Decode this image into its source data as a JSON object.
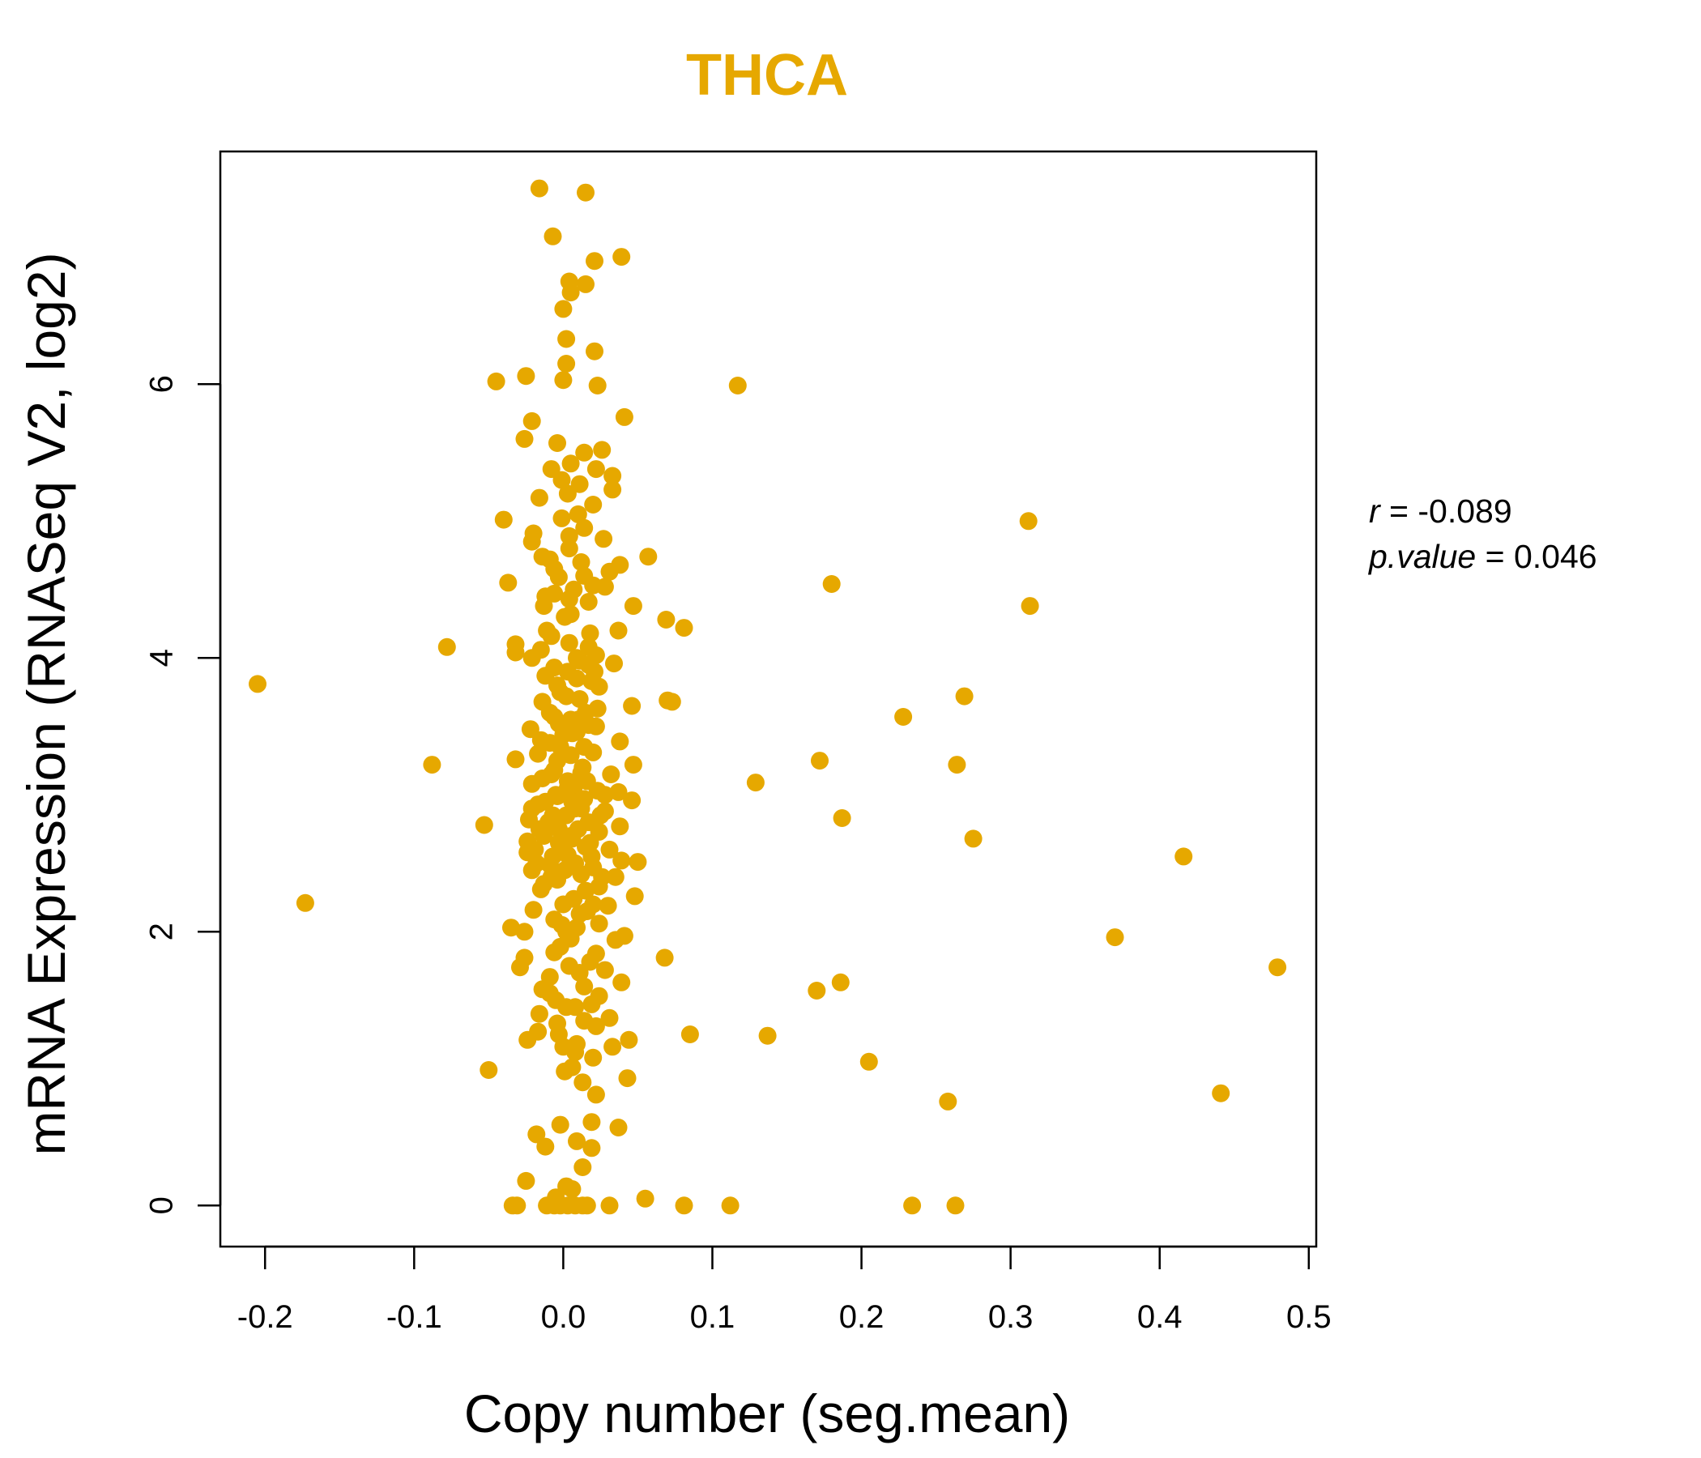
{
  "colors": {
    "points": "#E6A800",
    "axis": "#000000"
  },
  "chart_data": {
    "type": "scatter",
    "title": "THCA",
    "xlabel": "Copy number (seg.mean)",
    "ylabel": "mRNA Expression (RNASeq V2, log2)",
    "xlim": [
      -0.23,
      0.505
    ],
    "ylim": [
      -0.3,
      7.7
    ],
    "x_ticks": [
      -0.2,
      -0.1,
      0.0,
      0.1,
      0.2,
      0.3,
      0.4,
      0.5
    ],
    "x_tick_labels": [
      "-0.2",
      "-0.1",
      "0.0",
      "0.1",
      "0.2",
      "0.3",
      "0.4",
      "0.5"
    ],
    "y_ticks": [
      0,
      2,
      4,
      6
    ],
    "y_tick_labels": [
      "0",
      "2",
      "4",
      "6"
    ],
    "grid": false,
    "legend": "none",
    "stats": {
      "r_label": "r",
      "r_value": "-0.089",
      "p_label": "p.value",
      "p_value": "0.046"
    },
    "points": [
      [
        -0.016,
        7.43
      ],
      [
        0.015,
        7.4
      ],
      [
        -0.007,
        7.08
      ],
      [
        0.021,
        6.9
      ],
      [
        0.039,
        6.93
      ],
      [
        0.004,
        6.75
      ],
      [
        0.015,
        6.73
      ],
      [
        0.005,
        6.67
      ],
      [
        0.0,
        6.55
      ],
      [
        0.002,
        6.33
      ],
      [
        0.021,
        6.24
      ],
      [
        0.002,
        6.15
      ],
      [
        0.0,
        6.03
      ],
      [
        -0.045,
        6.02
      ],
      [
        -0.025,
        6.06
      ],
      [
        0.117,
        5.99
      ],
      [
        0.023,
        5.99
      ],
      [
        0.041,
        5.76
      ],
      [
        -0.021,
        5.73
      ],
      [
        -0.026,
        5.6
      ],
      [
        -0.004,
        5.57
      ],
      [
        0.014,
        5.5
      ],
      [
        0.026,
        5.52
      ],
      [
        0.005,
        5.42
      ],
      [
        -0.008,
        5.38
      ],
      [
        0.022,
        5.38
      ],
      [
        0.033,
        5.33
      ],
      [
        -0.001,
        5.3
      ],
      [
        0.011,
        5.27
      ],
      [
        0.033,
        5.23
      ],
      [
        0.003,
        5.2
      ],
      [
        -0.016,
        5.17
      ],
      [
        0.02,
        5.12
      ],
      [
        0.01,
        5.05
      ],
      [
        -0.001,
        5.02
      ],
      [
        -0.04,
        5.01
      ],
      [
        0.312,
        5.0
      ],
      [
        0.014,
        4.95
      ],
      [
        -0.02,
        4.91
      ],
      [
        0.004,
        4.89
      ],
      [
        0.027,
        4.87
      ],
      [
        -0.021,
        4.85
      ],
      [
        -0.014,
        4.74
      ],
      [
        0.057,
        4.74
      ],
      [
        -0.009,
        4.72
      ],
      [
        0.038,
        4.68
      ],
      [
        0.031,
        4.63
      ],
      [
        0.014,
        4.6
      ],
      [
        -0.003,
        4.59
      ],
      [
        -0.037,
        4.55
      ],
      [
        0.18,
        4.54
      ],
      [
        0.02,
        4.53
      ],
      [
        0.028,
        4.52
      ],
      [
        -0.006,
        4.47
      ],
      [
        0.004,
        4.43
      ],
      [
        0.017,
        4.41
      ],
      [
        -0.013,
        4.38
      ],
      [
        0.047,
        4.38
      ],
      [
        0.313,
        4.38
      ],
      [
        0.005,
        4.32
      ],
      [
        0.069,
        4.28
      ],
      [
        0.081,
        4.22
      ],
      [
        0.037,
        4.2
      ],
      [
        0.018,
        4.18
      ],
      [
        -0.008,
        4.16
      ],
      [
        0.004,
        4.11
      ],
      [
        0.017,
        4.08
      ],
      [
        -0.032,
        4.1
      ],
      [
        -0.078,
        4.08
      ],
      [
        -0.015,
        4.06
      ],
      [
        -0.032,
        4.04
      ],
      [
        0.022,
        4.02
      ],
      [
        -0.021,
        4.0
      ],
      [
        0.011,
        3.98
      ],
      [
        0.034,
        3.96
      ],
      [
        -0.006,
        3.93
      ],
      [
        0.021,
        3.9
      ],
      [
        -0.012,
        3.87
      ],
      [
        0.009,
        3.85
      ],
      [
        0.019,
        3.83
      ],
      [
        -0.205,
        3.81
      ],
      [
        0.024,
        3.79
      ],
      [
        -0.002,
        3.75
      ],
      [
        0.002,
        3.72
      ],
      [
        0.269,
        3.72
      ],
      [
        0.07,
        3.69
      ],
      [
        0.073,
        3.68
      ],
      [
        -0.014,
        3.68
      ],
      [
        0.046,
        3.65
      ],
      [
        0.023,
        3.63
      ],
      [
        0.015,
        3.6
      ],
      [
        -0.006,
        3.57
      ],
      [
        0.228,
        3.57
      ],
      [
        0.005,
        3.55
      ],
      [
        -0.003,
        3.52
      ],
      [
        0.017,
        3.51
      ],
      [
        -0.022,
        3.48
      ],
      [
        0.009,
        3.46
      ],
      [
        0.0,
        3.44
      ],
      [
        0.038,
        3.39
      ],
      [
        -0.009,
        3.38
      ],
      [
        0.014,
        3.35
      ],
      [
        0.02,
        3.31
      ],
      [
        -0.017,
        3.3
      ],
      [
        0.005,
        3.29
      ],
      [
        -0.032,
        3.26
      ],
      [
        0.172,
        3.25
      ],
      [
        0.047,
        3.22
      ],
      [
        -0.088,
        3.22
      ],
      [
        0.264,
        3.22
      ],
      [
        -0.006,
        3.18
      ],
      [
        0.012,
        3.16
      ],
      [
        0.032,
        3.15
      ],
      [
        -0.014,
        3.12
      ],
      [
        0.016,
        3.1
      ],
      [
        0.129,
        3.09
      ],
      [
        -0.021,
        3.08
      ],
      [
        0.003,
        3.05
      ],
      [
        0.023,
        3.03
      ],
      [
        0.037,
        3.02
      ],
      [
        -0.004,
        2.99
      ],
      [
        0.014,
        2.97
      ],
      [
        0.046,
        2.96
      ],
      [
        -0.017,
        2.93
      ],
      [
        0.008,
        2.9
      ],
      [
        0.028,
        2.88
      ],
      [
        -0.007,
        2.85
      ],
      [
        0.187,
        2.83
      ],
      [
        -0.023,
        2.82
      ],
      [
        0.017,
        2.8
      ],
      [
        -0.053,
        2.78
      ],
      [
        0.038,
        2.77
      ],
      [
        -0.003,
        2.75
      ],
      [
        0.024,
        2.73
      ],
      [
        0.275,
        2.68
      ],
      [
        -0.013,
        2.7
      ],
      [
        0.006,
        2.68
      ],
      [
        -0.024,
        2.66
      ],
      [
        0.015,
        2.62
      ],
      [
        0.031,
        2.6
      ],
      [
        -0.024,
        2.58
      ],
      [
        0.003,
        2.56
      ],
      [
        0.416,
        2.55
      ],
      [
        0.039,
        2.52
      ],
      [
        0.05,
        2.51
      ],
      [
        -0.009,
        2.49
      ],
      [
        0.02,
        2.47
      ],
      [
        -0.021,
        2.45
      ],
      [
        0.012,
        2.42
      ],
      [
        0.035,
        2.4
      ],
      [
        -0.004,
        2.38
      ],
      [
        0.024,
        2.33
      ],
      [
        -0.015,
        2.31
      ],
      [
        0.048,
        2.26
      ],
      [
        0.007,
        2.24
      ],
      [
        -0.173,
        2.21
      ],
      [
        0.03,
        2.19
      ],
      [
        -0.02,
        2.16
      ],
      [
        0.011,
        2.13
      ],
      [
        -0.006,
        2.09
      ],
      [
        0.024,
        2.06
      ],
      [
        0.009,
        2.03
      ],
      [
        -0.035,
        2.03
      ],
      [
        0.002,
        2.0
      ],
      [
        -0.026,
        2.0
      ],
      [
        0.041,
        1.97
      ],
      [
        0.035,
        1.94
      ],
      [
        0.37,
        1.96
      ],
      [
        -0.002,
        1.89
      ],
      [
        0.022,
        1.84
      ],
      [
        0.068,
        1.81
      ],
      [
        -0.026,
        1.81
      ],
      [
        0.018,
        1.78
      ],
      [
        0.004,
        1.75
      ],
      [
        -0.029,
        1.74
      ],
      [
        0.479,
        1.74
      ],
      [
        0.028,
        1.72
      ],
      [
        -0.009,
        1.67
      ],
      [
        0.039,
        1.63
      ],
      [
        0.186,
        1.63
      ],
      [
        0.014,
        1.6
      ],
      [
        -0.014,
        1.58
      ],
      [
        0.17,
        1.57
      ],
      [
        0.024,
        1.53
      ],
      [
        -0.005,
        1.5
      ],
      [
        0.019,
        1.47
      ],
      [
        0.008,
        1.45
      ],
      [
        -0.016,
        1.4
      ],
      [
        0.031,
        1.37
      ],
      [
        -0.004,
        1.33
      ],
      [
        0.022,
        1.31
      ],
      [
        0.085,
        1.25
      ],
      [
        -0.017,
        1.27
      ],
      [
        0.137,
        1.24
      ],
      [
        0.044,
        1.21
      ],
      [
        -0.024,
        1.21
      ],
      [
        0.009,
        1.18
      ],
      [
        0.0,
        1.16
      ],
      [
        0.033,
        1.16
      ],
      [
        0.02,
        1.08
      ],
      [
        0.205,
        1.05
      ],
      [
        0.006,
        1.01
      ],
      [
        -0.05,
        0.99
      ],
      [
        0.001,
        0.98
      ],
      [
        0.013,
        0.9
      ],
      [
        0.043,
        0.93
      ],
      [
        0.022,
        0.81
      ],
      [
        0.441,
        0.82
      ],
      [
        0.258,
        0.76
      ],
      [
        0.019,
        0.61
      ],
      [
        -0.002,
        0.59
      ],
      [
        0.037,
        0.57
      ],
      [
        -0.018,
        0.52
      ],
      [
        0.009,
        0.47
      ],
      [
        -0.012,
        0.43
      ],
      [
        0.019,
        0.42
      ],
      [
        0.013,
        0.28
      ],
      [
        -0.025,
        0.18
      ],
      [
        0.002,
        0.14
      ],
      [
        0.006,
        0.12
      ],
      [
        -0.005,
        0.06
      ],
      [
        0.055,
        0.05
      ],
      [
        -0.034,
        0.0
      ],
      [
        -0.031,
        0.0
      ],
      [
        -0.011,
        0.0
      ],
      [
        -0.006,
        0.0
      ],
      [
        -0.002,
        0.0
      ],
      [
        0.003,
        0.0
      ],
      [
        0.008,
        0.0
      ],
      [
        0.013,
        0.0
      ],
      [
        0.016,
        0.0
      ],
      [
        0.031,
        0.0
      ],
      [
        0.081,
        0.0
      ],
      [
        0.112,
        0.0
      ],
      [
        0.234,
        0.0
      ],
      [
        0.263,
        0.0
      ],
      [
        0.0,
        2.6
      ],
      [
        0.005,
        2.7
      ],
      [
        -0.01,
        2.8
      ],
      [
        0.012,
        2.9
      ],
      [
        -0.005,
        3.0
      ],
      [
        0.003,
        3.1
      ],
      [
        0.008,
        2.5
      ],
      [
        -0.008,
        2.4
      ],
      [
        0.015,
        2.3
      ],
      [
        0.0,
        2.2
      ],
      [
        -0.012,
        2.95
      ],
      [
        0.01,
        2.75
      ],
      [
        -0.003,
        2.65
      ],
      [
        0.007,
        3.05
      ],
      [
        0.002,
        2.85
      ],
      [
        -0.007,
        2.55
      ],
      [
        0.018,
        2.65
      ],
      [
        -0.016,
        2.75
      ],
      [
        0.013,
        3.2
      ],
      [
        -0.002,
        3.35
      ],
      [
        0.006,
        3.45
      ],
      [
        -0.009,
        3.6
      ],
      [
        0.011,
        3.7
      ],
      [
        -0.004,
        3.8
      ],
      [
        0.003,
        3.9
      ],
      [
        0.009,
        4.0
      ],
      [
        -0.011,
        4.2
      ],
      [
        0.001,
        4.3
      ],
      [
        0.007,
        4.5
      ],
      [
        -0.006,
        4.65
      ],
      [
        0.004,
        4.8
      ],
      [
        -0.013,
        2.35
      ],
      [
        0.016,
        2.15
      ],
      [
        -0.001,
        2.05
      ],
      [
        0.005,
        1.95
      ],
      [
        -0.006,
        1.85
      ],
      [
        0.011,
        1.7
      ],
      [
        -0.009,
        1.55
      ],
      [
        0.002,
        1.45
      ],
      [
        0.014,
        1.35
      ],
      [
        -0.003,
        1.25
      ],
      [
        0.008,
        1.12
      ],
      [
        0.001,
        2.45
      ],
      [
        -0.004,
        3.25
      ],
      [
        0.01,
        3.55
      ],
      [
        -0.008,
        3.15
      ],
      [
        0.006,
        2.95
      ],
      [
        0.019,
        2.55
      ],
      [
        -0.019,
        2.6
      ],
      [
        0.025,
        2.85
      ],
      [
        -0.021,
        2.9
      ],
      [
        0.028,
        3.0
      ],
      [
        0.026,
        2.4
      ],
      [
        -0.018,
        2.5
      ],
      [
        0.02,
        2.2
      ],
      [
        -0.015,
        3.4
      ],
      [
        0.022,
        3.5
      ],
      [
        0.017,
        3.95
      ],
      [
        -0.012,
        4.45
      ],
      [
        0.012,
        4.7
      ]
    ]
  }
}
